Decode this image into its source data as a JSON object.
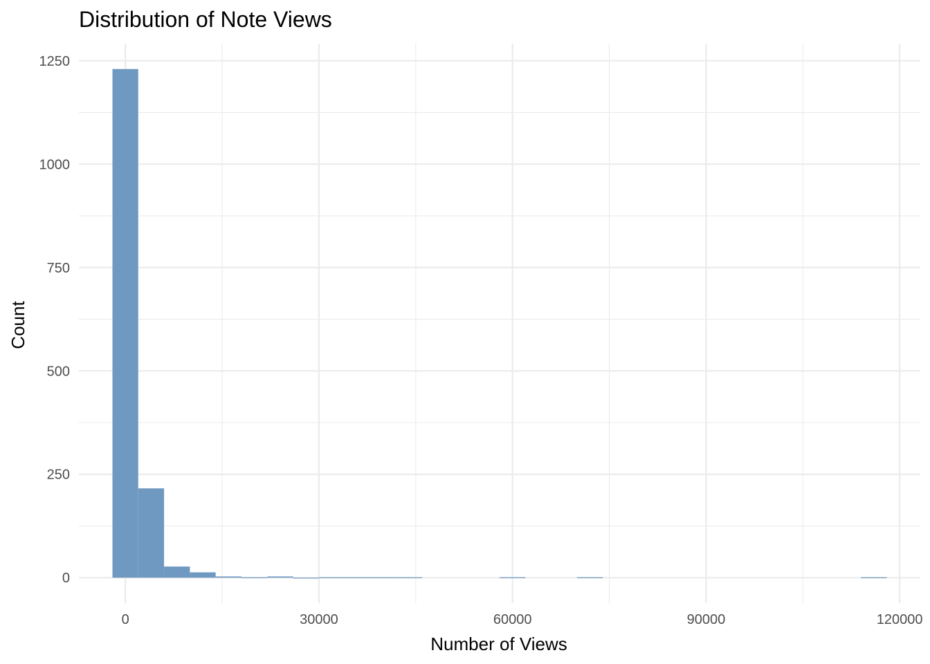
{
  "chart_data": {
    "type": "bar",
    "title": "Distribution of Note Views",
    "xlabel": "Number of Views",
    "ylabel": "Count",
    "bin_width": 4000,
    "bins": [
      {
        "x0": -2000,
        "x1": 2000,
        "count": 1230
      },
      {
        "x0": 2000,
        "x1": 6000,
        "count": 216
      },
      {
        "x0": 6000,
        "x1": 10000,
        "count": 27
      },
      {
        "x0": 10000,
        "x1": 14000,
        "count": 13
      },
      {
        "x0": 14000,
        "x1": 18000,
        "count": 3
      },
      {
        "x0": 18000,
        "x1": 22000,
        "count": 1
      },
      {
        "x0": 22000,
        "x1": 26000,
        "count": 3
      },
      {
        "x0": 26000,
        "x1": 30000,
        "count": 0
      },
      {
        "x0": 30000,
        "x1": 34000,
        "count": 1
      },
      {
        "x0": 34000,
        "x1": 38000,
        "count": 1
      },
      {
        "x0": 38000,
        "x1": 42000,
        "count": 1
      },
      {
        "x0": 42000,
        "x1": 46000,
        "count": 1
      },
      {
        "x0": 58000,
        "x1": 62000,
        "count": 1
      },
      {
        "x0": 70000,
        "x1": 74000,
        "count": 1
      },
      {
        "x0": 114000,
        "x1": 118000,
        "count": 1
      }
    ],
    "xlim": [
      -7200,
      123200
    ],
    "ylim": [
      -61.5,
      1291.5
    ],
    "x_ticks": [
      0,
      30000,
      60000,
      90000,
      120000
    ],
    "x_tick_labels": [
      "0",
      "30000",
      "60000",
      "90000",
      "120000"
    ],
    "x_minor_ticks": [
      15000,
      45000,
      75000,
      105000
    ],
    "y_ticks": [
      0,
      250,
      500,
      750,
      1000,
      1250
    ],
    "y_tick_labels": [
      "0",
      "250",
      "500",
      "750",
      "1000",
      "1250"
    ],
    "y_minor_ticks": [
      125,
      375,
      625,
      875,
      1125
    ],
    "grid": true,
    "legend": "none",
    "bar_color": "#7099c2",
    "background_color": "#ffffff",
    "grid_color": "#ebebeb"
  }
}
